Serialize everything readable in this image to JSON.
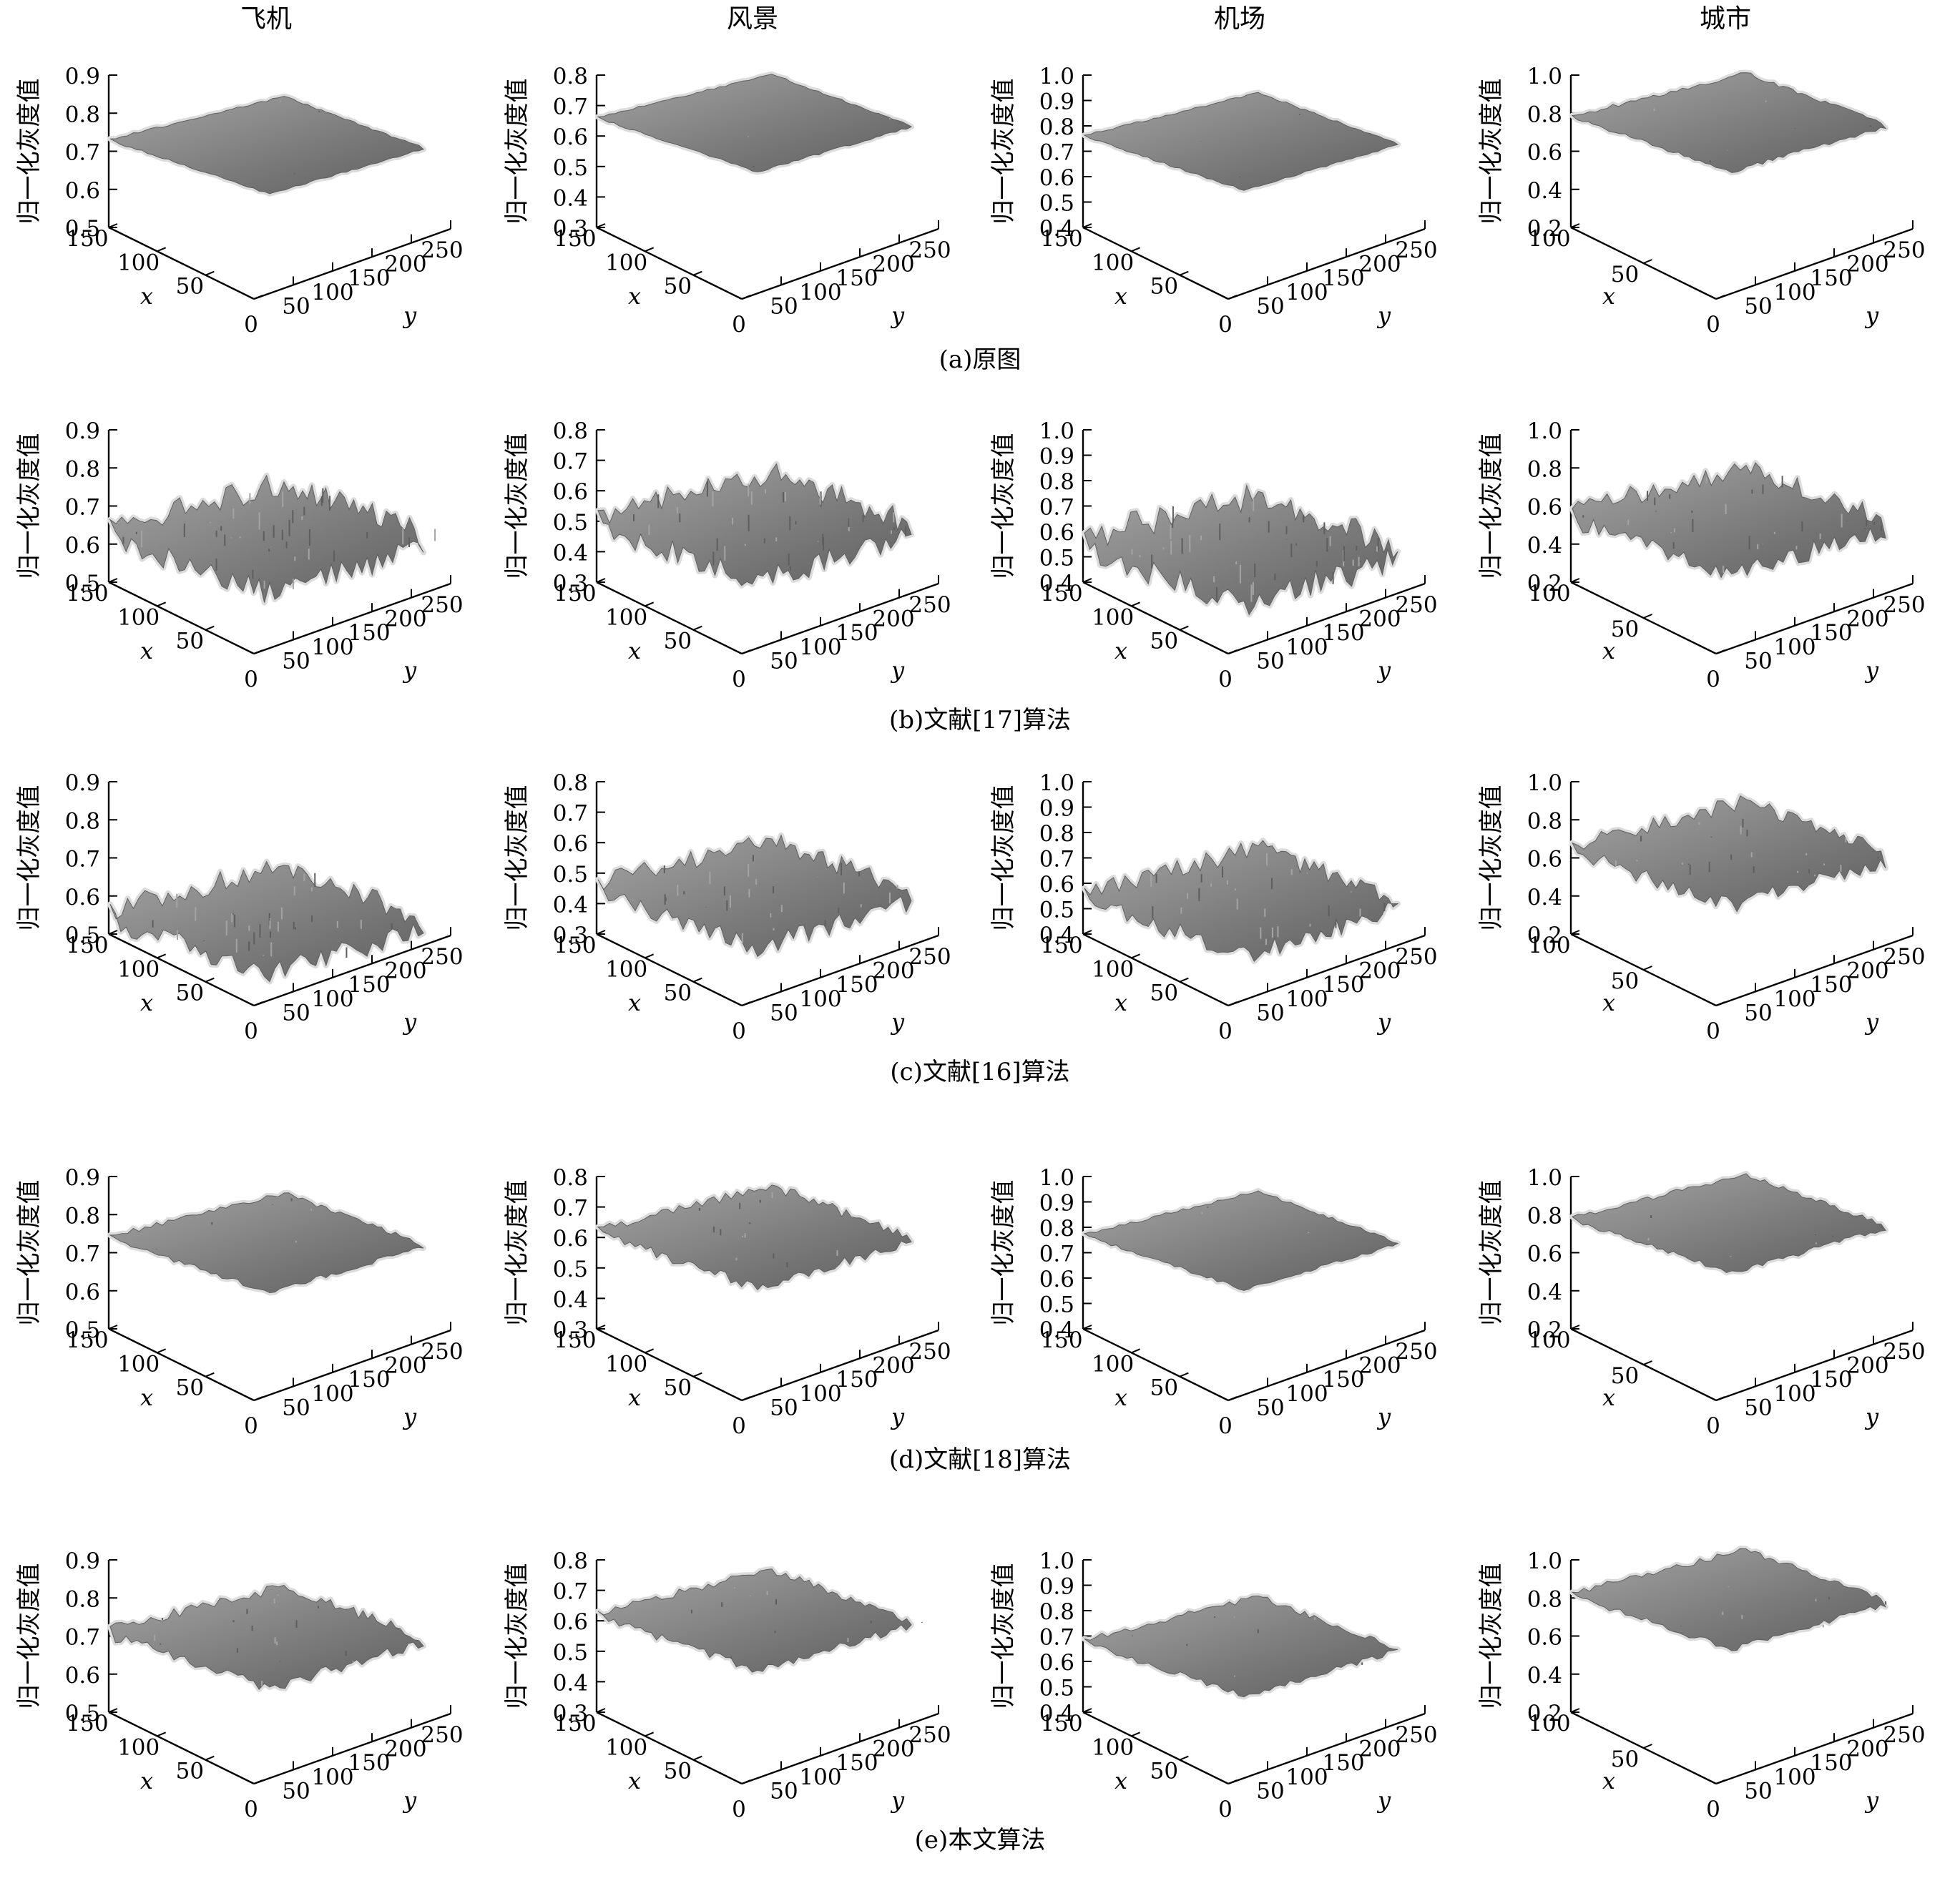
{
  "chart_data": {
    "type": "surface3d",
    "column_titles": [
      "飞机",
      "风景",
      "机场",
      "城市"
    ],
    "row_captions": [
      "(a)原图",
      "(b)文献[17]算法",
      "(c)文献[16]算法",
      "(d)文献[18]算法",
      "(e)本文算法"
    ],
    "zlabel": "归一化灰度值",
    "xlabel": "x",
    "ylabel": "y",
    "columns": [
      {
        "x_ticks": [
          "150",
          "100",
          "50",
          "0"
        ],
        "y_ticks": [
          "50",
          "100",
          "150",
          "200",
          "250"
        ]
      },
      {
        "x_ticks": [
          "150",
          "100",
          "50",
          "0"
        ],
        "y_ticks": [
          "50",
          "100",
          "150",
          "200",
          "250"
        ]
      },
      {
        "x_ticks": [
          "150",
          "100",
          "50",
          "0"
        ],
        "y_ticks": [
          "50",
          "100",
          "150",
          "200",
          "250"
        ]
      },
      {
        "x_ticks": [
          "100",
          "50",
          "0"
        ],
        "y_ticks": [
          "50",
          "100",
          "150",
          "200",
          "250"
        ]
      }
    ],
    "z_ticks": [
      [
        [
          "0.9",
          "0.8",
          "0.7",
          "0.6",
          "0.5"
        ],
        [
          "0.8",
          "0.7",
          "0.6",
          "0.5",
          "0.4",
          "0.3"
        ],
        [
          "1.0",
          "0.9",
          "0.8",
          "0.7",
          "0.6",
          "0.5",
          "0.4"
        ],
        [
          "1.0",
          "0.8",
          "0.6",
          "0.4",
          "0.2"
        ]
      ],
      [
        [
          "0.9",
          "0.8",
          "0.7",
          "0.6",
          "0.5"
        ],
        [
          "0.8",
          "0.7",
          "0.6",
          "0.5",
          "0.4",
          "0.3"
        ],
        [
          "1.0",
          "0.9",
          "0.8",
          "0.7",
          "0.6",
          "0.5",
          "0.4"
        ],
        [
          "1.0",
          "0.8",
          "0.6",
          "0.4",
          "0.2"
        ]
      ],
      [
        [
          "0.9",
          "0.8",
          "0.7",
          "0.6",
          "0.5"
        ],
        [
          "0.8",
          "0.7",
          "0.6",
          "0.5",
          "0.4",
          "0.3"
        ],
        [
          "1.0",
          "0.9",
          "0.8",
          "0.7",
          "0.6",
          "0.5",
          "0.4"
        ],
        [
          "1.0",
          "0.8",
          "0.6",
          "0.4",
          "0.2"
        ]
      ],
      [
        [
          "0.9",
          "0.8",
          "0.7",
          "0.6",
          "0.5"
        ],
        [
          "0.8",
          "0.7",
          "0.6",
          "0.5",
          "0.4",
          "0.3"
        ],
        [
          "1.0",
          "0.9",
          "0.8",
          "0.7",
          "0.6",
          "0.5",
          "0.4"
        ],
        [
          "1.0",
          "0.8",
          "0.6",
          "0.4",
          "0.2"
        ]
      ],
      [
        [
          "0.9",
          "0.8",
          "0.7",
          "0.6",
          "0.5"
        ],
        [
          "0.8",
          "0.7",
          "0.6",
          "0.5",
          "0.4",
          "0.3"
        ],
        [
          "1.0",
          "0.9",
          "0.8",
          "0.7",
          "0.6",
          "0.5",
          "0.4"
        ],
        [
          "1.0",
          "0.8",
          "0.6",
          "0.4",
          "0.2"
        ]
      ]
    ],
    "surface_mean_level": [
      [
        0.73,
        0.66,
        0.76,
        0.78
      ],
      [
        0.63,
        0.5,
        0.55,
        0.55
      ],
      [
        0.55,
        0.45,
        0.55,
        0.65
      ],
      [
        0.74,
        0.62,
        0.77,
        0.78
      ],
      [
        0.71,
        0.62,
        0.68,
        0.82
      ]
    ],
    "surface_roughness": [
      [
        0.05,
        0.05,
        0.05,
        0.1
      ],
      [
        0.65,
        0.6,
        0.7,
        0.5
      ],
      [
        0.55,
        0.5,
        0.5,
        0.4
      ],
      [
        0.12,
        0.25,
        0.08,
        0.12
      ],
      [
        0.3,
        0.2,
        0.15,
        0.15
      ]
    ],
    "colors": {
      "surface": "#7d7d7d",
      "surface_light": "#a4a4a4",
      "surface_dark": "#5e5e5e",
      "halo": "#dcdcdc"
    }
  }
}
